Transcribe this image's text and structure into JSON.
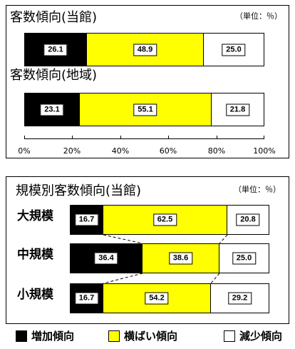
{
  "colors": {
    "increase": "#000000",
    "flat": "#ffff00",
    "decrease": "#ffffff"
  },
  "legend": [
    {
      "key": "increase",
      "label": "増加傾向"
    },
    {
      "key": "flat",
      "label": "横ばい傾向"
    },
    {
      "key": "decrease",
      "label": "減少傾向"
    }
  ],
  "chart_data": [
    {
      "type": "bar",
      "stacked": "percent",
      "orientation": "horizontal",
      "unit_note": "（単位：％）",
      "xlim": [
        0,
        100
      ],
      "x_ticks": [
        "0%",
        "20%",
        "40%",
        "60%",
        "80%",
        "100%"
      ],
      "rows": [
        {
          "title": "客数傾向(当館)",
          "values": [
            26.1,
            48.9,
            25.0
          ],
          "labels": [
            "26.1",
            "48.9",
            "25.0"
          ]
        },
        {
          "title": "客数傾向(地域)",
          "values": [
            23.1,
            55.1,
            21.8
          ],
          "labels": [
            "23.1",
            "55.1",
            "21.8"
          ]
        }
      ]
    },
    {
      "type": "bar",
      "stacked": "percent",
      "orientation": "horizontal",
      "title": "規模別客数傾向(当館)",
      "unit_note": "（単位：％）",
      "xlim": [
        0,
        100
      ],
      "rows": [
        {
          "name": "大規模",
          "values": [
            16.7,
            62.5,
            20.8
          ],
          "labels": [
            "16.7",
            "62.5",
            "20.8"
          ]
        },
        {
          "name": "中規模",
          "values": [
            36.4,
            38.6,
            25.0
          ],
          "labels": [
            "36.4",
            "38.6",
            "25.0"
          ]
        },
        {
          "name": "小規模",
          "values": [
            16.7,
            54.2,
            29.2
          ],
          "labels": [
            "16.7",
            "54.2",
            "29.2"
          ]
        }
      ]
    }
  ]
}
